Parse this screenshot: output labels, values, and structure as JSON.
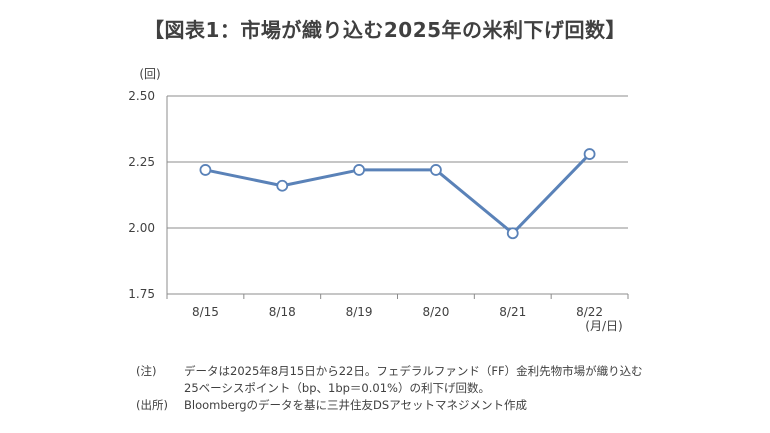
{
  "chart_data": {
    "type": "line",
    "title": "【図表1：市場が織り込む2025年の米利下げ回数】",
    "ylabel": "(回)",
    "xlabel": "(月/日)",
    "categories": [
      "8/15",
      "8/18",
      "8/19",
      "8/20",
      "8/21",
      "8/22"
    ],
    "series": [
      {
        "values": [
          2.22,
          2.16,
          2.22,
          2.22,
          1.98,
          2.28
        ]
      }
    ],
    "ylim": [
      1.75,
      2.5
    ],
    "yticks": [
      "1.75",
      "2.00",
      "2.25",
      "2.50"
    ],
    "grid": true,
    "legend": "none"
  },
  "notes": {
    "note_label": "(注)",
    "note_line1": "データは2025年8月15日から22日。フェデラルファンド（FF）金利先物市場が織り込む",
    "note_line2": "25ベーシスポイント（bp、1bp＝0.01%）の利下げ回数。",
    "source_label": "(出所)",
    "source_text": "Bloombergのデータを基に三井住友DSアセットマネジメント作成"
  },
  "colors": {
    "line": "#5a82b8",
    "grid": "#8c8c8c",
    "text": "#404040"
  }
}
